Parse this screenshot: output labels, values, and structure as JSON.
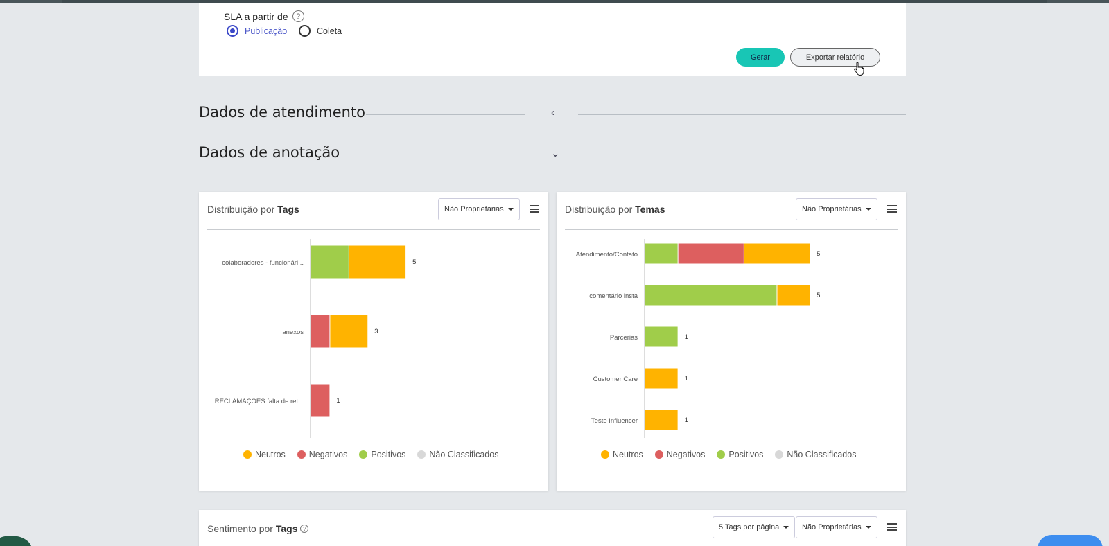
{
  "sla": {
    "label": "SLA a partir de",
    "help_icon": "?",
    "options": [
      "Publicação",
      "Coleta"
    ],
    "selected": "Publicação"
  },
  "actions": {
    "generate": "Gerar",
    "export": "Exportar relatório"
  },
  "sections": [
    {
      "title": "Dados de atendimento",
      "chevron": "‹",
      "state": "collapsed"
    },
    {
      "title": "Dados de anotação",
      "chevron": "⌄",
      "state": "expanded"
    }
  ],
  "cards": {
    "tags": {
      "title_prefix": "Distribuição por ",
      "title_bold": "Tags",
      "filter": "Não Proprietárias"
    },
    "temas": {
      "title_prefix": "Distribuição por ",
      "title_bold": "Temas",
      "filter": "Não Proprietárias"
    },
    "sentiment": {
      "title_prefix": "Sentimento por ",
      "title_bold": "Tags",
      "help_icon": "?",
      "per_page": "5 Tags por página",
      "filter": "Não Proprietárias"
    }
  },
  "legend": [
    "Neutros",
    "Negativos",
    "Positivos",
    "Não Classificados"
  ],
  "colors": {
    "Neutros": "#ffb300",
    "Negativos": "#dd5f5f",
    "Positivos": "#a0cd4a",
    "Não Classificados": "#d8d8d8",
    "accent": "#18c6b5",
    "radio": "#3b48c8"
  },
  "chart_data": [
    {
      "type": "bar",
      "orientation": "horizontal",
      "stacked": true,
      "categories": [
        "colaboradores - funcionári...",
        "anexos",
        "RECLAMAÇÕES falta de ret..."
      ],
      "series": [
        {
          "name": "Positivos",
          "values": [
            2,
            0,
            0
          ]
        },
        {
          "name": "Negativos",
          "values": [
            0,
            1,
            1
          ]
        },
        {
          "name": "Neutros",
          "values": [
            3,
            2,
            0
          ]
        },
        {
          "name": "Não Classificados",
          "values": [
            0,
            0,
            0
          ]
        }
      ],
      "totals": [
        5,
        3,
        1
      ],
      "xlim": [
        0,
        6.2
      ]
    },
    {
      "type": "bar",
      "orientation": "horizontal",
      "stacked": true,
      "categories": [
        "Atendimento/Contato",
        "comentário insta",
        "Parcerias",
        "Customer Care",
        "Teste Influencer"
      ],
      "series": [
        {
          "name": "Positivos",
          "values": [
            1,
            4,
            1,
            0,
            0
          ]
        },
        {
          "name": "Negativos",
          "values": [
            2,
            0,
            0,
            0,
            0
          ]
        },
        {
          "name": "Neutros",
          "values": [
            2,
            1,
            0,
            1,
            1
          ]
        },
        {
          "name": "Não Classificados",
          "values": [
            0,
            0,
            0,
            0,
            0
          ]
        }
      ],
      "totals": [
        5,
        5,
        1,
        1,
        1
      ],
      "xlim": [
        0,
        6.3
      ]
    }
  ]
}
